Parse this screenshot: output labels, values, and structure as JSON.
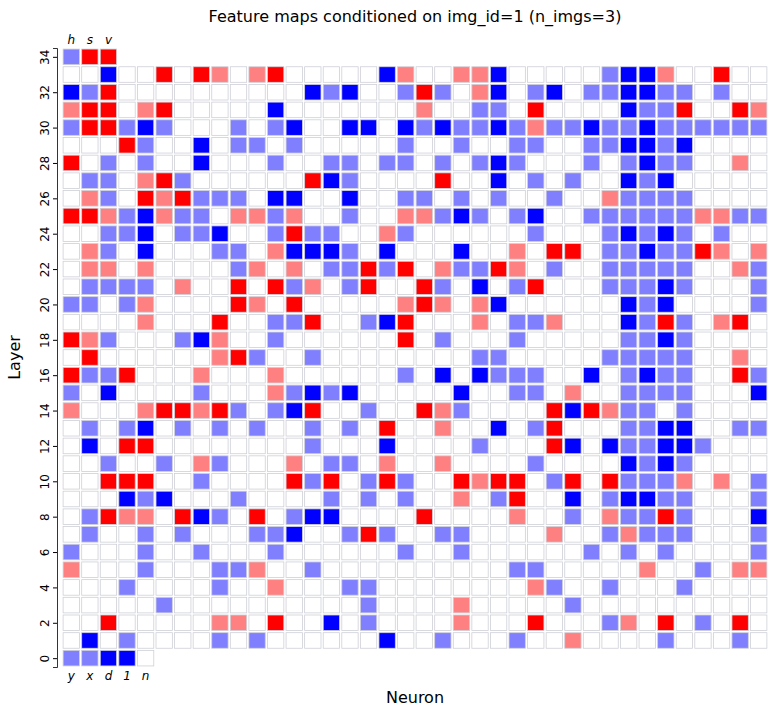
{
  "chart_data": {
    "type": "heatmap",
    "title": "Feature maps conditioned on img_id=1 (n_imgs=3)",
    "x_label": "Neuron",
    "y_label": "Layer",
    "ylim": [
      -0.5,
      34.5
    ],
    "yticks": [
      0,
      2,
      4,
      6,
      8,
      10,
      12,
      14,
      16,
      18,
      20,
      22,
      24,
      26,
      28,
      30,
      32,
      34
    ],
    "zlim": [
      -1,
      1
    ],
    "tick_labels": "y",
    "top_labels": [
      "h",
      "s",
      "v"
    ],
    "bottom_labels": [
      "y",
      "x",
      "d",
      "1",
      "n"
    ],
    "cells": [
      [
        -0.5,
        -0.5,
        -1,
        -1,
        0
      ],
      [
        0,
        -1,
        0,
        -0.5,
        0,
        0,
        0,
        0,
        -0.5,
        0,
        -0.5,
        0,
        0,
        0,
        0,
        0,
        0,
        -1,
        0,
        0,
        -0.5,
        0,
        0,
        0,
        -0.5,
        0,
        0,
        0.5,
        0,
        0,
        0,
        0,
        -0.5,
        0,
        0,
        0,
        -0.5,
        0
      ],
      [
        0,
        0,
        1,
        0,
        0,
        0,
        0,
        0,
        0.5,
        0.5,
        0,
        1,
        0,
        0,
        -1,
        0,
        -0.5,
        0,
        0,
        0,
        0,
        0.5,
        0,
        0,
        0,
        1,
        0,
        0,
        0,
        -0.5,
        0.5,
        0,
        1,
        0,
        -0.5,
        0,
        1,
        0
      ],
      [
        0,
        0,
        0,
        0,
        0,
        -0.5,
        0,
        0,
        0,
        0,
        0,
        0,
        0,
        0,
        0,
        0,
        -0.5,
        0,
        0,
        0,
        0,
        0.5,
        0,
        0,
        0,
        0,
        0,
        -0.5,
        0,
        0,
        0,
        0,
        0,
        0,
        0,
        0,
        0,
        0
      ],
      [
        0,
        0,
        0,
        -0.5,
        0,
        0,
        0,
        0,
        -0.5,
        0,
        0,
        0.5,
        0,
        0,
        0,
        -0.5,
        -0.5,
        0,
        0,
        0,
        0,
        0,
        0,
        0,
        0,
        0.5,
        -0.5,
        0,
        0,
        -0.5,
        0,
        0,
        0,
        -0.5,
        0,
        0,
        0,
        0
      ],
      [
        0.5,
        0,
        0,
        0,
        -0.5,
        0,
        0,
        0,
        -0.5,
        -0.5,
        0.5,
        0,
        0,
        -0.5,
        0,
        0,
        0,
        0,
        0,
        0,
        0,
        0,
        0,
        0,
        -0.5,
        -0.5,
        0,
        0,
        0,
        0,
        0,
        0.5,
        0,
        0,
        -0.5,
        0,
        0.5,
        0.5
      ],
      [
        -0.5,
        0,
        0,
        0,
        -0.5,
        0,
        0,
        -0.5,
        0,
        0,
        0,
        -0.5,
        0,
        0,
        0,
        0,
        0,
        0,
        -0.5,
        0,
        0,
        -0.5,
        0,
        0,
        0,
        0,
        0,
        0,
        -0.5,
        0,
        -0.5,
        0,
        -0.5,
        0,
        0,
        0,
        0,
        -0.5
      ],
      [
        0,
        -0.5,
        0,
        0,
        -0.5,
        0,
        -0.5,
        0,
        0,
        0,
        -0.5,
        -0.5,
        -1,
        0,
        0,
        -0.5,
        1,
        -0.5,
        0,
        0,
        -0.5,
        -0.5,
        0,
        0,
        0,
        0,
        0.5,
        0,
        0,
        -0.5,
        0.5,
        -0.5,
        -0.5,
        -0.5,
        0,
        0,
        0,
        -0.5
      ],
      [
        0,
        -0.5,
        1,
        0.5,
        0.5,
        0,
        1,
        -1,
        -0.5,
        0,
        1,
        0,
        -0.5,
        -1,
        -1,
        0,
        0,
        0,
        0,
        1,
        0,
        0,
        0,
        0,
        0.5,
        0,
        0,
        -0.5,
        0,
        0.5,
        -0.5,
        -0.5,
        1,
        -0.5,
        0,
        0,
        0,
        -1
      ],
      [
        0,
        0,
        0,
        -1,
        -0.5,
        -1,
        0,
        0,
        0,
        -0.5,
        0,
        0,
        0,
        0,
        -0.5,
        0,
        -0.5,
        0,
        -0.5,
        0,
        0,
        0.5,
        0,
        -0.5,
        1,
        0,
        0,
        -1,
        0,
        -0.5,
        -1,
        -1,
        -0.5,
        -0.5,
        0,
        0,
        0,
        -0.5
      ],
      [
        0,
        0,
        1,
        1,
        1,
        0,
        0,
        -0.5,
        0,
        0,
        0,
        0,
        1,
        -0.5,
        1,
        0,
        -0.5,
        1,
        -0.5,
        0,
        0,
        1,
        0.5,
        1,
        1,
        0,
        -0.5,
        1,
        0,
        1,
        -0.5,
        -0.5,
        -0.5,
        0.5,
        0,
        0.5,
        0,
        -0.5
      ],
      [
        0,
        0,
        -0.5,
        0,
        0,
        -0.5,
        0,
        0.5,
        -0.5,
        0,
        0,
        0,
        0.5,
        0,
        -0.5,
        -0.5,
        0,
        0.5,
        0,
        0,
        0.5,
        0,
        0,
        0,
        0,
        -0.5,
        0,
        0,
        0,
        0,
        -1,
        -0.5,
        -1,
        -0.5,
        0,
        0,
        0,
        0
      ],
      [
        0,
        -1,
        0,
        1,
        1,
        0,
        0,
        0,
        0,
        0,
        0,
        0,
        0,
        -0.5,
        0,
        0,
        0,
        -1,
        0,
        0,
        0,
        0,
        -0.5,
        0,
        0,
        0,
        1,
        -1,
        0,
        -1,
        -0.5,
        -0.5,
        -1,
        -1,
        -0.5,
        0,
        0,
        0
      ],
      [
        0,
        -0.5,
        0,
        -0.5,
        -1,
        0,
        -0.5,
        0,
        -0.5,
        0,
        -0.5,
        0,
        0,
        -0.5,
        0,
        -0.5,
        0,
        1,
        0,
        0,
        0.5,
        0,
        0,
        -1,
        0,
        -0.5,
        1,
        0,
        0,
        0,
        -0.5,
        -0.5,
        -1,
        -1,
        0,
        0,
        -0.5,
        -0.5
      ],
      [
        0.5,
        0,
        0,
        0,
        0.5,
        1,
        1,
        0.5,
        1,
        -0.5,
        0,
        -0.5,
        -1,
        1,
        0,
        0,
        -0.5,
        0,
        0,
        1,
        0.5,
        -0.5,
        0,
        0,
        0,
        0,
        1,
        -1,
        1,
        0.5,
        -0.5,
        -0.5,
        0,
        -0.5,
        0,
        0,
        0,
        0
      ],
      [
        -0.5,
        0,
        -1,
        0,
        0,
        0,
        0,
        -0.5,
        0,
        0,
        0,
        0.5,
        -0.5,
        -1,
        -0.5,
        -1,
        0,
        0,
        0,
        0,
        0,
        -1,
        0,
        0,
        -0.5,
        -0.5,
        0,
        0.5,
        0,
        0,
        -0.5,
        -0.5,
        -0.5,
        -0.5,
        0,
        0,
        0,
        -1
      ],
      [
        1,
        -0.5,
        -0.5,
        1,
        0,
        0,
        0,
        0.5,
        0,
        0,
        0,
        0.5,
        0,
        0,
        0,
        0,
        0,
        0,
        -0.5,
        0,
        -1,
        0,
        -1,
        -0.5,
        -0.5,
        -0.5,
        0,
        0,
        -1,
        0,
        -0.5,
        -1,
        -0.5,
        -0.5,
        0,
        0,
        1,
        -0.5
      ],
      [
        0,
        1,
        0,
        0,
        0,
        0,
        0,
        0,
        0.5,
        1,
        -0.5,
        0,
        0,
        -0.5,
        0,
        0,
        0,
        0,
        0,
        0,
        0,
        0,
        -0.5,
        -0.5,
        0,
        0,
        0,
        0,
        0,
        -0.5,
        -0.5,
        -0.5,
        -0.5,
        -0.5,
        0,
        0,
        0.5,
        0
      ],
      [
        1,
        0.5,
        -0.5,
        0,
        0,
        0,
        -0.5,
        -1,
        0.5,
        0,
        0,
        -0.5,
        0,
        0,
        0,
        0,
        0,
        0,
        1,
        0,
        -0.5,
        0,
        0,
        0,
        -0.5,
        0,
        0,
        0,
        0,
        0,
        -0.5,
        -0.5,
        -1,
        -0.5,
        0,
        0,
        0,
        0
      ],
      [
        0,
        0,
        0,
        0,
        0.5,
        0,
        0,
        0,
        1,
        0,
        0,
        -0.5,
        -0.5,
        1,
        0,
        0,
        -0.5,
        -1,
        1,
        0,
        0,
        0,
        0.5,
        0,
        -0.5,
        -0.5,
        0.5,
        0,
        0,
        0,
        -1,
        -0.5,
        1,
        -0.5,
        0,
        0.5,
        1,
        0
      ],
      [
        -0.5,
        -0.5,
        0,
        -0.5,
        0.5,
        0,
        0,
        0,
        0,
        1,
        0.5,
        0,
        1,
        0,
        0,
        0,
        0,
        0,
        0.5,
        1,
        0.5,
        0,
        0.5,
        -1,
        0,
        0,
        0,
        0,
        0,
        0,
        -1,
        -0.5,
        -1,
        0,
        0,
        0,
        0,
        -0.5
      ],
      [
        0,
        -0.5,
        -0.5,
        -0.5,
        -0.5,
        0,
        0.5,
        0,
        0,
        1,
        0,
        1,
        -0.5,
        0.5,
        0,
        -0.5,
        1,
        0,
        0,
        1,
        -0.5,
        0,
        -1,
        0,
        -0.5,
        1,
        0,
        0,
        0,
        -0.5,
        -0.5,
        -0.5,
        -1,
        -0.5,
        0,
        0,
        0,
        -0.5
      ],
      [
        0,
        0.5,
        0.5,
        0,
        0.5,
        0,
        0,
        0,
        0,
        -0.5,
        0.5,
        0,
        0.5,
        0,
        -0.5,
        -0.5,
        1,
        -0.5,
        1,
        0,
        0.5,
        -0.5,
        -0.5,
        1,
        0.5,
        0,
        -0.5,
        0,
        0,
        -0.5,
        -0.5,
        -0.5,
        -0.5,
        -0.5,
        0,
        0,
        0.5,
        -0.5
      ],
      [
        0,
        0.5,
        -0.5,
        0,
        -1,
        0,
        0,
        0,
        -0.5,
        -0.5,
        0,
        0.5,
        -1,
        -1,
        -1,
        -0.5,
        0,
        -1,
        0,
        0,
        0,
        -1,
        0,
        0,
        0.5,
        0,
        1,
        1,
        0,
        -0.5,
        -0.5,
        -1,
        -0.5,
        -0.5,
        1,
        0.5,
        0,
        0.5
      ],
      [
        0,
        0,
        -0.5,
        -0.5,
        -1,
        0,
        -0.5,
        -0.5,
        -1,
        0,
        0,
        -0.5,
        1,
        -0.5,
        -0.5,
        0,
        0,
        0.5,
        -0.5,
        0,
        0,
        0,
        0,
        0,
        0,
        -0.5,
        0,
        0,
        0,
        -0.5,
        -1,
        -0.5,
        -1,
        -0.5,
        0,
        -0.5,
        0,
        0
      ],
      [
        1,
        1,
        0.5,
        -0.5,
        -1,
        0.5,
        -0.5,
        -0.5,
        0,
        0.5,
        0.5,
        -0.5,
        0.5,
        0,
        0,
        -0.5,
        0,
        0,
        0.5,
        0.5,
        -0.5,
        -1,
        -0.5,
        0,
        -0.5,
        -1,
        0,
        0,
        -0.5,
        -0.5,
        -0.5,
        -0.5,
        -0.5,
        -0.5,
        0.5,
        0.5,
        -0.5,
        -0.5
      ],
      [
        0,
        0.5,
        -0.5,
        0,
        1,
        0.5,
        1,
        -0.5,
        -0.5,
        -0.5,
        0,
        -1,
        -1,
        0,
        0,
        -1,
        0,
        0,
        -0.5,
        -0.5,
        0,
        -0.5,
        0,
        -0.5,
        0,
        0,
        -0.5,
        0,
        0,
        0.5,
        -0.5,
        -0.5,
        -0.5,
        -0.5,
        0,
        0,
        0,
        0
      ],
      [
        0,
        -0.5,
        -0.5,
        0,
        0.5,
        1,
        -0.5,
        0,
        0,
        0,
        0,
        0,
        0,
        1,
        -1,
        -0.5,
        0,
        0,
        0,
        0,
        1,
        0,
        0,
        -1,
        0,
        -0.5,
        0,
        -0.5,
        0,
        0,
        -1,
        -0.5,
        -1,
        0,
        0,
        0,
        0,
        0
      ],
      [
        1,
        0,
        -0.5,
        0,
        -0.5,
        0,
        0,
        -1,
        0,
        0,
        0,
        -0.5,
        0,
        0,
        -0.5,
        -0.5,
        0,
        -0.5,
        -0.5,
        0,
        -0.5,
        0,
        -0.5,
        -1,
        -0.5,
        0,
        0,
        0,
        -0.5,
        0,
        -0.5,
        -1,
        -0.5,
        -0.5,
        0,
        0,
        0.5,
        0
      ],
      [
        0,
        0,
        0,
        1,
        -0.5,
        0,
        0,
        -1,
        0,
        -0.5,
        -0.5,
        0,
        -0.5,
        0,
        0,
        0,
        0,
        0,
        -0.5,
        0,
        0,
        -0.5,
        0,
        0,
        -0.5,
        -0.5,
        0,
        0,
        -0.5,
        -0.5,
        -1,
        -1,
        -0.5,
        -1,
        0,
        0,
        0,
        0
      ],
      [
        -0.5,
        1,
        1,
        -0.5,
        -1,
        -0.5,
        0,
        0,
        0,
        -0.5,
        0,
        -0.5,
        -1,
        0,
        0,
        -1,
        -1,
        0,
        -1,
        -0.5,
        -1,
        -0.5,
        -0.5,
        -1,
        -0.5,
        0.5,
        -0.5,
        -0.5,
        -1,
        -0.5,
        -0.5,
        -1,
        -0.5,
        -0.5,
        -0.5,
        -0.5,
        -0.5,
        -0.5
      ],
      [
        0.5,
        1,
        1,
        0,
        0.5,
        1,
        0,
        0,
        0,
        0,
        0,
        -1,
        0,
        0,
        0,
        0,
        0,
        0,
        0,
        0.5,
        0,
        0,
        -0.5,
        -0.5,
        0,
        1,
        0,
        0,
        0,
        0,
        -1,
        -0.5,
        -0.5,
        1,
        0,
        0,
        1,
        0.5
      ],
      [
        -1,
        -0.5,
        1,
        0,
        0,
        0,
        0,
        0,
        0,
        0,
        0,
        0,
        0,
        -1,
        -0.5,
        -1,
        0,
        0,
        -0.5,
        1,
        -0.5,
        0,
        0.5,
        -1,
        0,
        -0.5,
        -1,
        0,
        -0.5,
        -0.5,
        -1,
        -1,
        -0.5,
        -0.5,
        0,
        -0.5,
        0,
        0
      ],
      [
        0,
        0,
        -1,
        0,
        0,
        1,
        0,
        1,
        0.5,
        0,
        0.5,
        1,
        0,
        0,
        0,
        0,
        0,
        -1,
        0.5,
        0,
        0,
        0.5,
        0.5,
        -1,
        0,
        0,
        0,
        0,
        0,
        -0.5,
        -1,
        -1,
        0.5,
        0,
        0,
        1,
        0,
        0
      ],
      [
        -0.5,
        1,
        1
      ]
    ]
  }
}
